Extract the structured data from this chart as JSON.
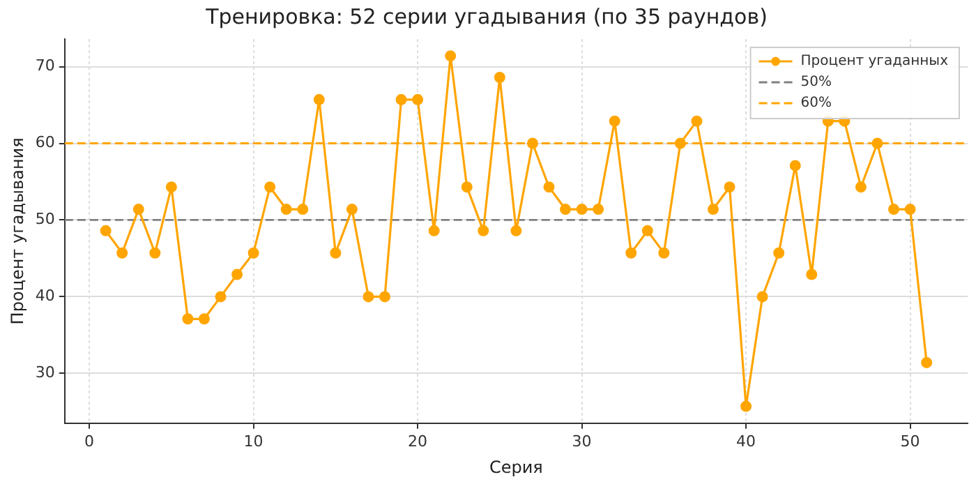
{
  "chart_data": {
    "type": "line",
    "title": "Тренировка: 52 серии угадывания (по 35 раундов)",
    "xlabel": "Серия",
    "ylabel": "Процент угадывания",
    "x": [
      1,
      2,
      3,
      4,
      5,
      6,
      7,
      8,
      9,
      10,
      11,
      12,
      13,
      14,
      15,
      16,
      17,
      18,
      19,
      20,
      21,
      22,
      23,
      24,
      25,
      26,
      27,
      28,
      29,
      30,
      31,
      32,
      33,
      34,
      35,
      36,
      37,
      38,
      39,
      40,
      41,
      42,
      43,
      44,
      45,
      46,
      47,
      48,
      49,
      50,
      51
    ],
    "series": [
      {
        "name": "Процент угаданных",
        "color": "#ffa500",
        "values": [
          48.6,
          45.7,
          51.4,
          45.7,
          54.3,
          37.1,
          37.1,
          40,
          42.9,
          45.7,
          54.3,
          51.4,
          51.4,
          65.7,
          45.7,
          51.4,
          40,
          40,
          65.7,
          65.7,
          48.6,
          71.4,
          54.3,
          48.6,
          68.6,
          48.6,
          60,
          54.3,
          51.4,
          51.4,
          51.4,
          62.9,
          45.7,
          48.6,
          45.7,
          60,
          62.9,
          51.4,
          54.3,
          25.7,
          40,
          45.7,
          57.1,
          42.9,
          62.9,
          62.9,
          54.3,
          60,
          51.4,
          51.4,
          31.4
        ]
      }
    ],
    "ref_lines": [
      {
        "axis": "y",
        "value": 50,
        "label": "50%",
        "color": "#808080",
        "line_style": "dashed"
      },
      {
        "axis": "y",
        "value": 60,
        "label": "60%",
        "color": "#ffa500",
        "line_style": "dashed"
      }
    ],
    "xlim": [
      -1.5,
      53.5
    ],
    "xticks": [
      0,
      10,
      20,
      30,
      40,
      50
    ],
    "ylim": [
      23.5,
      73.6
    ],
    "yticks": [
      30,
      40,
      50,
      60,
      70
    ],
    "grid": true,
    "legend": "top right",
    "marker": "circle",
    "line_style": "solid"
  }
}
